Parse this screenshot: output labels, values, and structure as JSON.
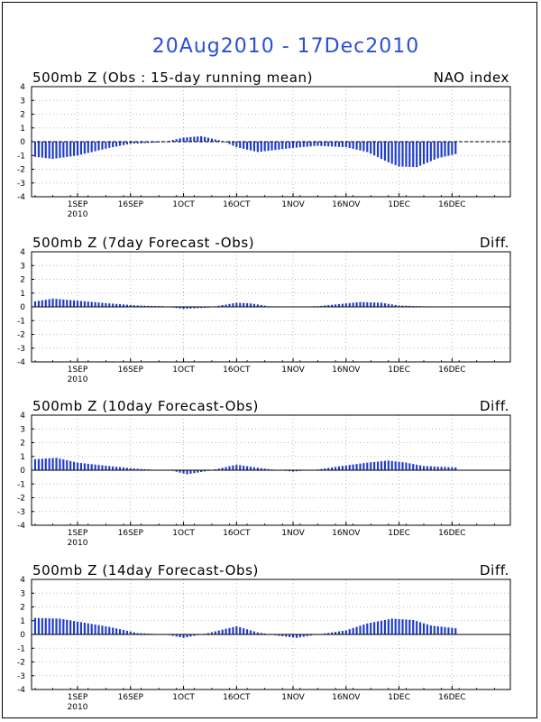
{
  "title": "20Aug2010 - 17Dec2010",
  "colors": {
    "bar": "#1f3cc9",
    "title": "#2a4fd6",
    "grid": "#b8b8b8",
    "axis": "#000000"
  },
  "chart_data": [
    {
      "type": "bar",
      "title": "500mb Z (Obs : 15-day running mean)",
      "right_label": "NAO index",
      "ylim": [
        -4,
        4
      ],
      "yticks": [
        "4",
        "3",
        "2",
        "1",
        "0",
        "-1",
        "-2",
        "-3",
        "-4"
      ],
      "xticks": [
        "1SEP",
        "16SEP",
        "1OCT",
        "16OCT",
        "1NOV",
        "16NOV",
        "1DEC",
        "16DEC"
      ],
      "year_label": "2010",
      "grid": true,
      "x_start": "2010-08-20",
      "x_end": "2010-12-17",
      "anchor_dates": [
        "2010-08-20",
        "2010-08-25",
        "2010-09-01",
        "2010-09-10",
        "2010-09-16",
        "2010-09-25",
        "2010-10-01",
        "2010-10-06",
        "2010-10-12",
        "2010-10-16",
        "2010-10-22",
        "2010-11-01",
        "2010-11-08",
        "2010-11-16",
        "2010-11-22",
        "2010-11-28",
        "2010-12-01",
        "2010-12-06",
        "2010-12-12",
        "2010-12-17"
      ],
      "anchor_values": [
        -1.1,
        -1.25,
        -1.0,
        -0.45,
        -0.15,
        -0.05,
        0.3,
        0.4,
        0.05,
        -0.4,
        -0.75,
        -0.45,
        -0.3,
        -0.4,
        -0.75,
        -1.5,
        -1.8,
        -1.85,
        -1.2,
        -0.9
      ]
    },
    {
      "type": "bar",
      "title": "500mb Z (7day Forecast -Obs)",
      "right_label": "Diff.",
      "ylim": [
        -4,
        4
      ],
      "yticks": [
        "4",
        "3",
        "2",
        "1",
        "0",
        "-1",
        "-2",
        "-3",
        "-4"
      ],
      "xticks": [
        "1SEP",
        "16SEP",
        "1OCT",
        "16OCT",
        "1NOV",
        "16NOV",
        "1DEC",
        "16DEC"
      ],
      "year_label": "2010",
      "grid": true,
      "x_start": "2010-08-20",
      "x_end": "2010-12-17",
      "anchor_dates": [
        "2010-08-20",
        "2010-08-25",
        "2010-09-01",
        "2010-09-10",
        "2010-09-18",
        "2010-09-25",
        "2010-10-01",
        "2010-10-08",
        "2010-10-16",
        "2010-10-20",
        "2010-10-25",
        "2010-11-01",
        "2010-11-08",
        "2010-11-16",
        "2010-11-20",
        "2010-11-26",
        "2010-12-01",
        "2010-12-06",
        "2010-12-17"
      ],
      "anchor_values": [
        0.4,
        0.6,
        0.45,
        0.25,
        0.1,
        0.05,
        -0.15,
        -0.05,
        0.3,
        0.25,
        0.05,
        0.0,
        0.05,
        0.25,
        0.35,
        0.3,
        0.1,
        0.05,
        0.0
      ]
    },
    {
      "type": "bar",
      "title": "500mb Z (10day Forecast-Obs)",
      "right_label": "Diff.",
      "ylim": [
        -4,
        4
      ],
      "yticks": [
        "4",
        "3",
        "2",
        "1",
        "0",
        "-1",
        "-2",
        "-3",
        "-4"
      ],
      "xticks": [
        "1SEP",
        "16SEP",
        "1OCT",
        "16OCT",
        "1NOV",
        "16NOV",
        "1DEC",
        "16DEC"
      ],
      "year_label": "2010",
      "grid": true,
      "x_start": "2010-08-20",
      "x_end": "2010-12-17",
      "anchor_dates": [
        "2010-08-20",
        "2010-08-26",
        "2010-09-01",
        "2010-09-10",
        "2010-09-18",
        "2010-09-28",
        "2010-10-02",
        "2010-10-08",
        "2010-10-16",
        "2010-10-20",
        "2010-10-26",
        "2010-11-01",
        "2010-11-08",
        "2010-11-16",
        "2010-11-22",
        "2010-11-28",
        "2010-12-03",
        "2010-12-08",
        "2010-12-17"
      ],
      "anchor_values": [
        0.8,
        0.9,
        0.55,
        0.3,
        0.1,
        -0.05,
        -0.3,
        -0.05,
        0.4,
        0.25,
        0.05,
        -0.1,
        0.05,
        0.35,
        0.55,
        0.7,
        0.55,
        0.3,
        0.2
      ]
    },
    {
      "type": "bar",
      "title": "500mb Z (14day Forecast-Obs)",
      "right_label": "Diff.",
      "ylim": [
        -4,
        4
      ],
      "yticks": [
        "4",
        "3",
        "2",
        "1",
        "0",
        "-1",
        "-2",
        "-3",
        "-4"
      ],
      "xticks": [
        "1SEP",
        "16SEP",
        "1OCT",
        "16OCT",
        "1NOV",
        "16NOV",
        "1DEC",
        "16DEC"
      ],
      "year_label": "2010",
      "grid": true,
      "x_start": "2010-08-20",
      "x_end": "2010-12-17",
      "anchor_dates": [
        "2010-08-20",
        "2010-08-27",
        "2010-09-03",
        "2010-09-10",
        "2010-09-18",
        "2010-09-26",
        "2010-10-01",
        "2010-10-08",
        "2010-10-16",
        "2010-10-22",
        "2010-10-28",
        "2010-11-02",
        "2010-11-08",
        "2010-11-16",
        "2010-11-22",
        "2010-11-29",
        "2010-12-05",
        "2010-12-10",
        "2010-12-17"
      ],
      "anchor_values": [
        1.2,
        1.15,
        0.85,
        0.55,
        0.1,
        0.0,
        -0.25,
        0.1,
        0.6,
        0.15,
        -0.1,
        -0.25,
        0.0,
        0.3,
        0.8,
        1.15,
        1.05,
        0.65,
        0.45
      ]
    }
  ]
}
